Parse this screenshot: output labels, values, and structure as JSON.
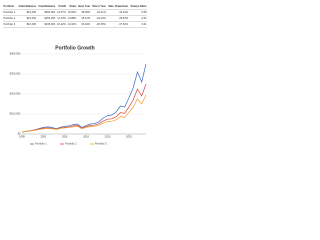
{
  "table": {
    "headers": [
      "Portfolio",
      "Initial Balance",
      "Final Balance",
      "CAGR",
      "Stdev",
      "Best Year",
      "Worst Year",
      "Max. Drawdown",
      "Sharpe Ratio"
    ],
    "rows": [
      [
        "Portfolio 1",
        "$10,000",
        "$350,000",
        "12.57%",
        "15.62%",
        "38.05%",
        "-34.21%",
        "-42.10%",
        "0.68"
      ],
      [
        "Portfolio 2",
        "$10,000",
        "$250,000",
        "11.34%",
        "14.88%",
        "35.12%",
        "-32.04%",
        "-39.87%",
        "0.64"
      ],
      [
        "Portfolio 3",
        "$10,000",
        "$195,000",
        "10.42%",
        "14.10%",
        "33.40%",
        "-30.35%",
        "-37.52%",
        "0.61"
      ]
    ]
  },
  "chart_data": {
    "type": "line",
    "title": "Portfolio Growth",
    "x": [
      1995,
      1996,
      1997,
      1998,
      1999,
      2000,
      2001,
      2002,
      2003,
      2004,
      2005,
      2006,
      2007,
      2008,
      2009,
      2010,
      2011,
      2012,
      2013,
      2014,
      2015,
      2016,
      2017,
      2018,
      2019,
      2020,
      2021,
      2022,
      2023,
      2024
    ],
    "xlim": [
      1995,
      2024
    ],
    "xticks": [
      1995,
      2000,
      2005,
      2010,
      2015,
      2020
    ],
    "ylim": [
      0,
      400000
    ],
    "yticks": [
      {
        "value": 0,
        "label": "$0"
      },
      {
        "value": 100000,
        "label": "$100,000"
      },
      {
        "value": 200000,
        "label": "$200,000"
      },
      {
        "value": 300000,
        "label": "$300,000"
      },
      {
        "value": 400000,
        "label": "$400,000"
      }
    ],
    "grid": true,
    "legend": "bottom",
    "series": [
      {
        "name": "Portfolio 1",
        "color": "#3a6fc4",
        "values": [
          10000,
          13000,
          16500,
          21500,
          27000,
          33000,
          36000,
          33000,
          26000,
          34000,
          38000,
          41000,
          47000,
          50000,
          33000,
          43000,
          50000,
          52000,
          61000,
          80000,
          92000,
          95000,
          110000,
          140000,
          135000,
          180000,
          230000,
          310000,
          260000,
          350000
        ]
      },
      {
        "name": "Portfolio 2",
        "color": "#d9433b",
        "values": [
          10000,
          12800,
          15800,
          20000,
          24500,
          29000,
          31000,
          29000,
          24000,
          30500,
          33500,
          36000,
          40500,
          43000,
          29000,
          37000,
          42500,
          44000,
          51000,
          65000,
          74000,
          76000,
          86000,
          107000,
          103000,
          135000,
          170000,
          225000,
          190000,
          250000
        ]
      },
      {
        "name": "Portfolio 3",
        "color": "#f0a030",
        "values": [
          10000,
          12400,
          15000,
          18800,
          22500,
          26000,
          27500,
          26500,
          22500,
          28000,
          30500,
          32500,
          36000,
          38000,
          26500,
          33000,
          37500,
          38500,
          44000,
          55000,
          62000,
          63500,
          71000,
          87000,
          84000,
          108000,
          134000,
          175000,
          150000,
          195000
        ]
      }
    ]
  }
}
